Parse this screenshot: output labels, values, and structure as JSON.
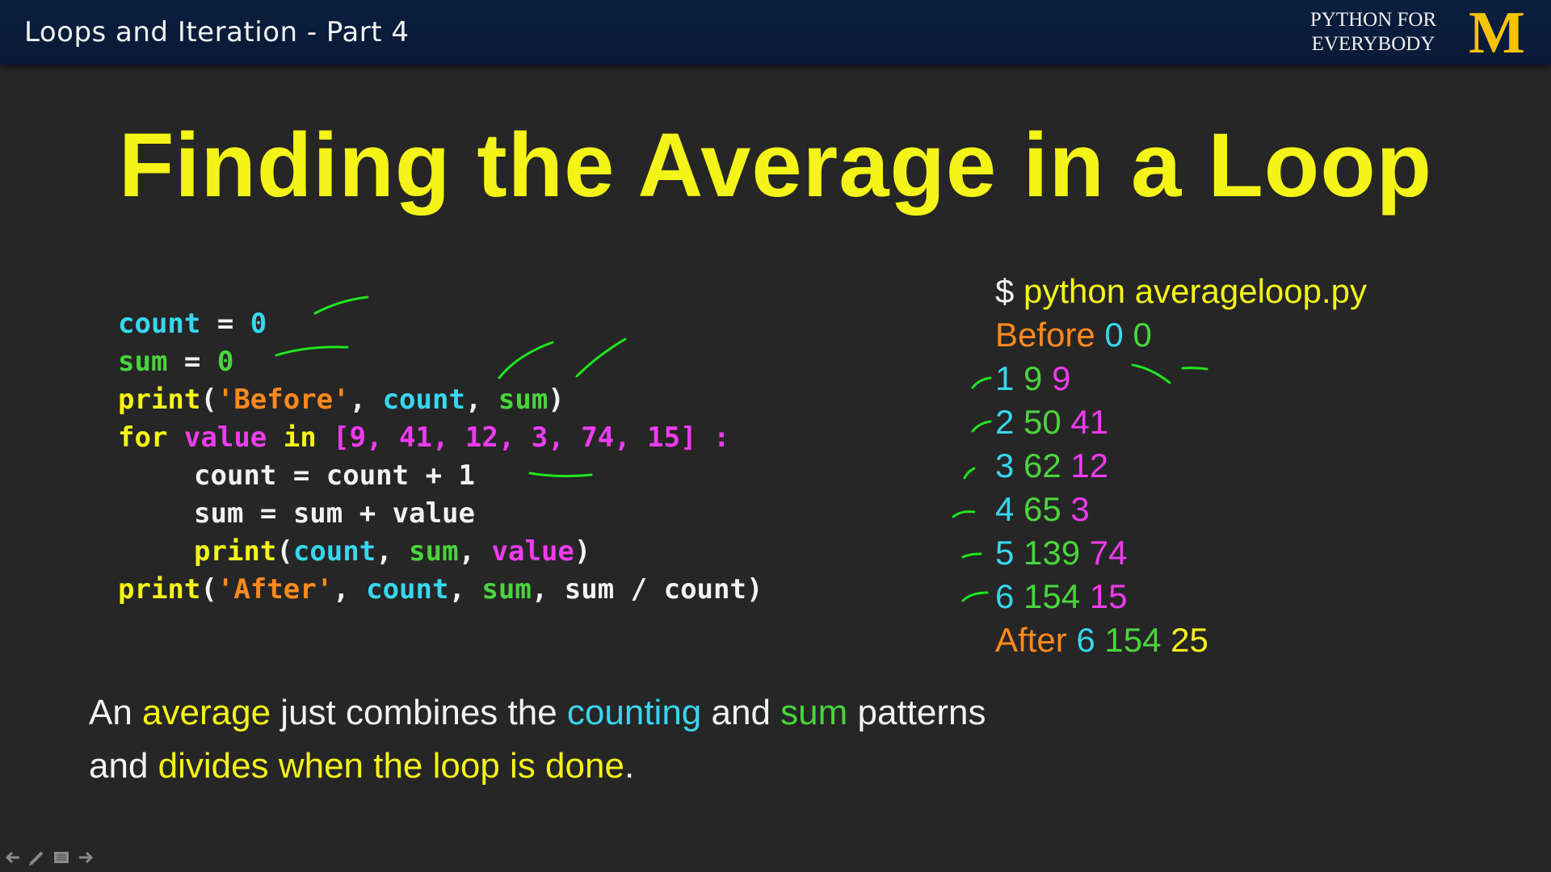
{
  "header": {
    "lecture_title": "Loops and Iteration - Part 4",
    "brand_line1": "PYTHON FOR",
    "brand_line2": "EVERYBODY",
    "logo_text": "M"
  },
  "slide": {
    "title": "Finding the Average in a Loop"
  },
  "code": {
    "lines": [
      {
        "indent": 0,
        "tokens": [
          {
            "t": "count",
            "c": "#37d7ee"
          },
          {
            "t": " = ",
            "c": "#f2f2f2"
          },
          {
            "t": "0",
            "c": "#37d7ee"
          }
        ]
      },
      {
        "indent": 0,
        "tokens": [
          {
            "t": "sum",
            "c": "#4ad53c"
          },
          {
            "t": " = ",
            "c": "#f2f2f2"
          },
          {
            "t": "0",
            "c": "#4ad53c"
          }
        ]
      },
      {
        "indent": 0,
        "tokens": [
          {
            "t": "print",
            "c": "#f4f418"
          },
          {
            "t": "(",
            "c": "#f2f2f2"
          },
          {
            "t": "'Before'",
            "c": "#ff8a1c"
          },
          {
            "t": ", ",
            "c": "#f2f2f2"
          },
          {
            "t": "count",
            "c": "#37d7ee"
          },
          {
            "t": ", ",
            "c": "#f2f2f2"
          },
          {
            "t": "sum",
            "c": "#4ad53c"
          },
          {
            "t": ")",
            "c": "#f2f2f2"
          }
        ]
      },
      {
        "indent": 0,
        "tokens": [
          {
            "t": "for",
            "c": "#f4f418"
          },
          {
            "t": " ",
            "c": "#f2f2f2"
          },
          {
            "t": "value",
            "c": "#ee3cee"
          },
          {
            "t": " ",
            "c": "#f2f2f2"
          },
          {
            "t": "in",
            "c": "#f4f418"
          },
          {
            "t": " [9, 41, 12, 3, 74, 15] :",
            "c": "#ee3cee"
          }
        ]
      },
      {
        "indent": 1,
        "tokens": [
          {
            "t": "count = count + 1",
            "c": "#f2f2f2"
          }
        ]
      },
      {
        "indent": 1,
        "tokens": [
          {
            "t": "sum = sum + value",
            "c": "#f2f2f2"
          }
        ]
      },
      {
        "indent": 1,
        "tokens": [
          {
            "t": "print",
            "c": "#f4f418"
          },
          {
            "t": "(",
            "c": "#f2f2f2"
          },
          {
            "t": "count",
            "c": "#37d7ee"
          },
          {
            "t": ", ",
            "c": "#f2f2f2"
          },
          {
            "t": "sum",
            "c": "#4ad53c"
          },
          {
            "t": ", ",
            "c": "#f2f2f2"
          },
          {
            "t": "value",
            "c": "#ee3cee"
          },
          {
            "t": ")",
            "c": "#f2f2f2"
          }
        ]
      },
      {
        "indent": 0,
        "tokens": [
          {
            "t": "print",
            "c": "#f4f418"
          },
          {
            "t": "(",
            "c": "#f2f2f2"
          },
          {
            "t": "'After'",
            "c": "#ff8a1c"
          },
          {
            "t": ", ",
            "c": "#f2f2f2"
          },
          {
            "t": "count",
            "c": "#37d7ee"
          },
          {
            "t": ", ",
            "c": "#f2f2f2"
          },
          {
            "t": "sum",
            "c": "#4ad53c"
          },
          {
            "t": ", ",
            "c": "#f2f2f2"
          },
          {
            "t": "sum / count",
            "c": "#f2f2f2"
          },
          {
            "t": ")",
            "c": "#f2f2f2"
          }
        ]
      }
    ]
  },
  "output": {
    "lines": [
      {
        "tokens": [
          {
            "t": "$ ",
            "c": "#f2f2f2"
          },
          {
            "t": "python averageloop.py",
            "c": "#f4f418"
          }
        ]
      },
      {
        "tokens": [
          {
            "t": "Before ",
            "c": "#ff8a1c"
          },
          {
            "t": "0 ",
            "c": "#37d7ee"
          },
          {
            "t": "0",
            "c": "#4ad53c"
          }
        ]
      },
      {
        "tokens": [
          {
            "t": "1 ",
            "c": "#37d7ee"
          },
          {
            "t": "9 ",
            "c": "#4ad53c"
          },
          {
            "t": "9",
            "c": "#ee3cee"
          }
        ]
      },
      {
        "tokens": [
          {
            "t": "2 ",
            "c": "#37d7ee"
          },
          {
            "t": "50 ",
            "c": "#4ad53c"
          },
          {
            "t": "41",
            "c": "#ee3cee"
          }
        ]
      },
      {
        "tokens": [
          {
            "t": "3 ",
            "c": "#37d7ee"
          },
          {
            "t": "62 ",
            "c": "#4ad53c"
          },
          {
            "t": "12",
            "c": "#ee3cee"
          }
        ]
      },
      {
        "tokens": [
          {
            "t": "4 ",
            "c": "#37d7ee"
          },
          {
            "t": "65 ",
            "c": "#4ad53c"
          },
          {
            "t": "3",
            "c": "#ee3cee"
          }
        ]
      },
      {
        "tokens": [
          {
            "t": "5 ",
            "c": "#37d7ee"
          },
          {
            "t": "139 ",
            "c": "#4ad53c"
          },
          {
            "t": "74",
            "c": "#ee3cee"
          }
        ]
      },
      {
        "tokens": [
          {
            "t": "6 ",
            "c": "#37d7ee"
          },
          {
            "t": "154 ",
            "c": "#4ad53c"
          },
          {
            "t": "15",
            "c": "#ee3cee"
          }
        ]
      },
      {
        "tokens": [
          {
            "t": "After ",
            "c": "#ff8a1c"
          },
          {
            "t": "6 ",
            "c": "#37d7ee"
          },
          {
            "t": "154 ",
            "c": "#4ad53c"
          },
          {
            "t": "25",
            "c": "#f4f418"
          }
        ]
      }
    ]
  },
  "summary": {
    "lines": [
      {
        "tokens": [
          {
            "t": "An ",
            "c": "#f2f2f2"
          },
          {
            "t": "average",
            "c": "#f4f418"
          },
          {
            "t": " just combines the ",
            "c": "#f2f2f2"
          },
          {
            "t": "counting",
            "c": "#37d7ee"
          },
          {
            "t": " and ",
            "c": "#f2f2f2"
          },
          {
            "t": "sum",
            "c": "#4ad53c"
          },
          {
            "t": " patterns",
            "c": "#f2f2f2"
          }
        ]
      },
      {
        "tokens": [
          {
            "t": "and ",
            "c": "#f2f2f2"
          },
          {
            "t": "divides when the loop is done",
            "c": "#f4f418"
          },
          {
            "t": ".",
            "c": "#f2f2f2"
          }
        ]
      }
    ]
  },
  "colors": {
    "background": "#262626",
    "header_bg": "#0b1e3f",
    "title": "#f4f418",
    "ink_annotation": "#1ee61e",
    "logo": "#f5c400"
  },
  "nav_icons": [
    "arrow-left-icon",
    "pen-icon",
    "menu-icon",
    "arrow-right-icon"
  ]
}
